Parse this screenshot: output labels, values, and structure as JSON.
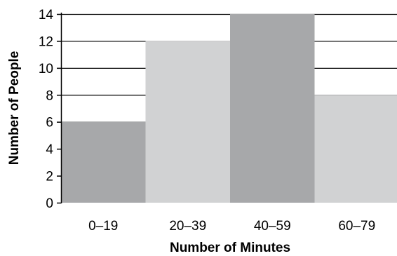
{
  "chart_data": {
    "type": "bar",
    "title": "",
    "xlabel": "Number of Minutes",
    "ylabel": "Number of People",
    "categories": [
      "0–19",
      "20–39",
      "40–59",
      "60–79"
    ],
    "values": [
      6,
      12,
      14,
      8
    ],
    "ylim": [
      0,
      14
    ],
    "yticks": [
      "0",
      "2",
      "4",
      "6",
      "8",
      "10",
      "12",
      "14"
    ],
    "grid": true,
    "legend": "none",
    "bar_colors": [
      "#a7a8aa",
      "#d1d2d3",
      "#a7a8aa",
      "#d1d2d3"
    ],
    "gridline_color": "#000000"
  }
}
